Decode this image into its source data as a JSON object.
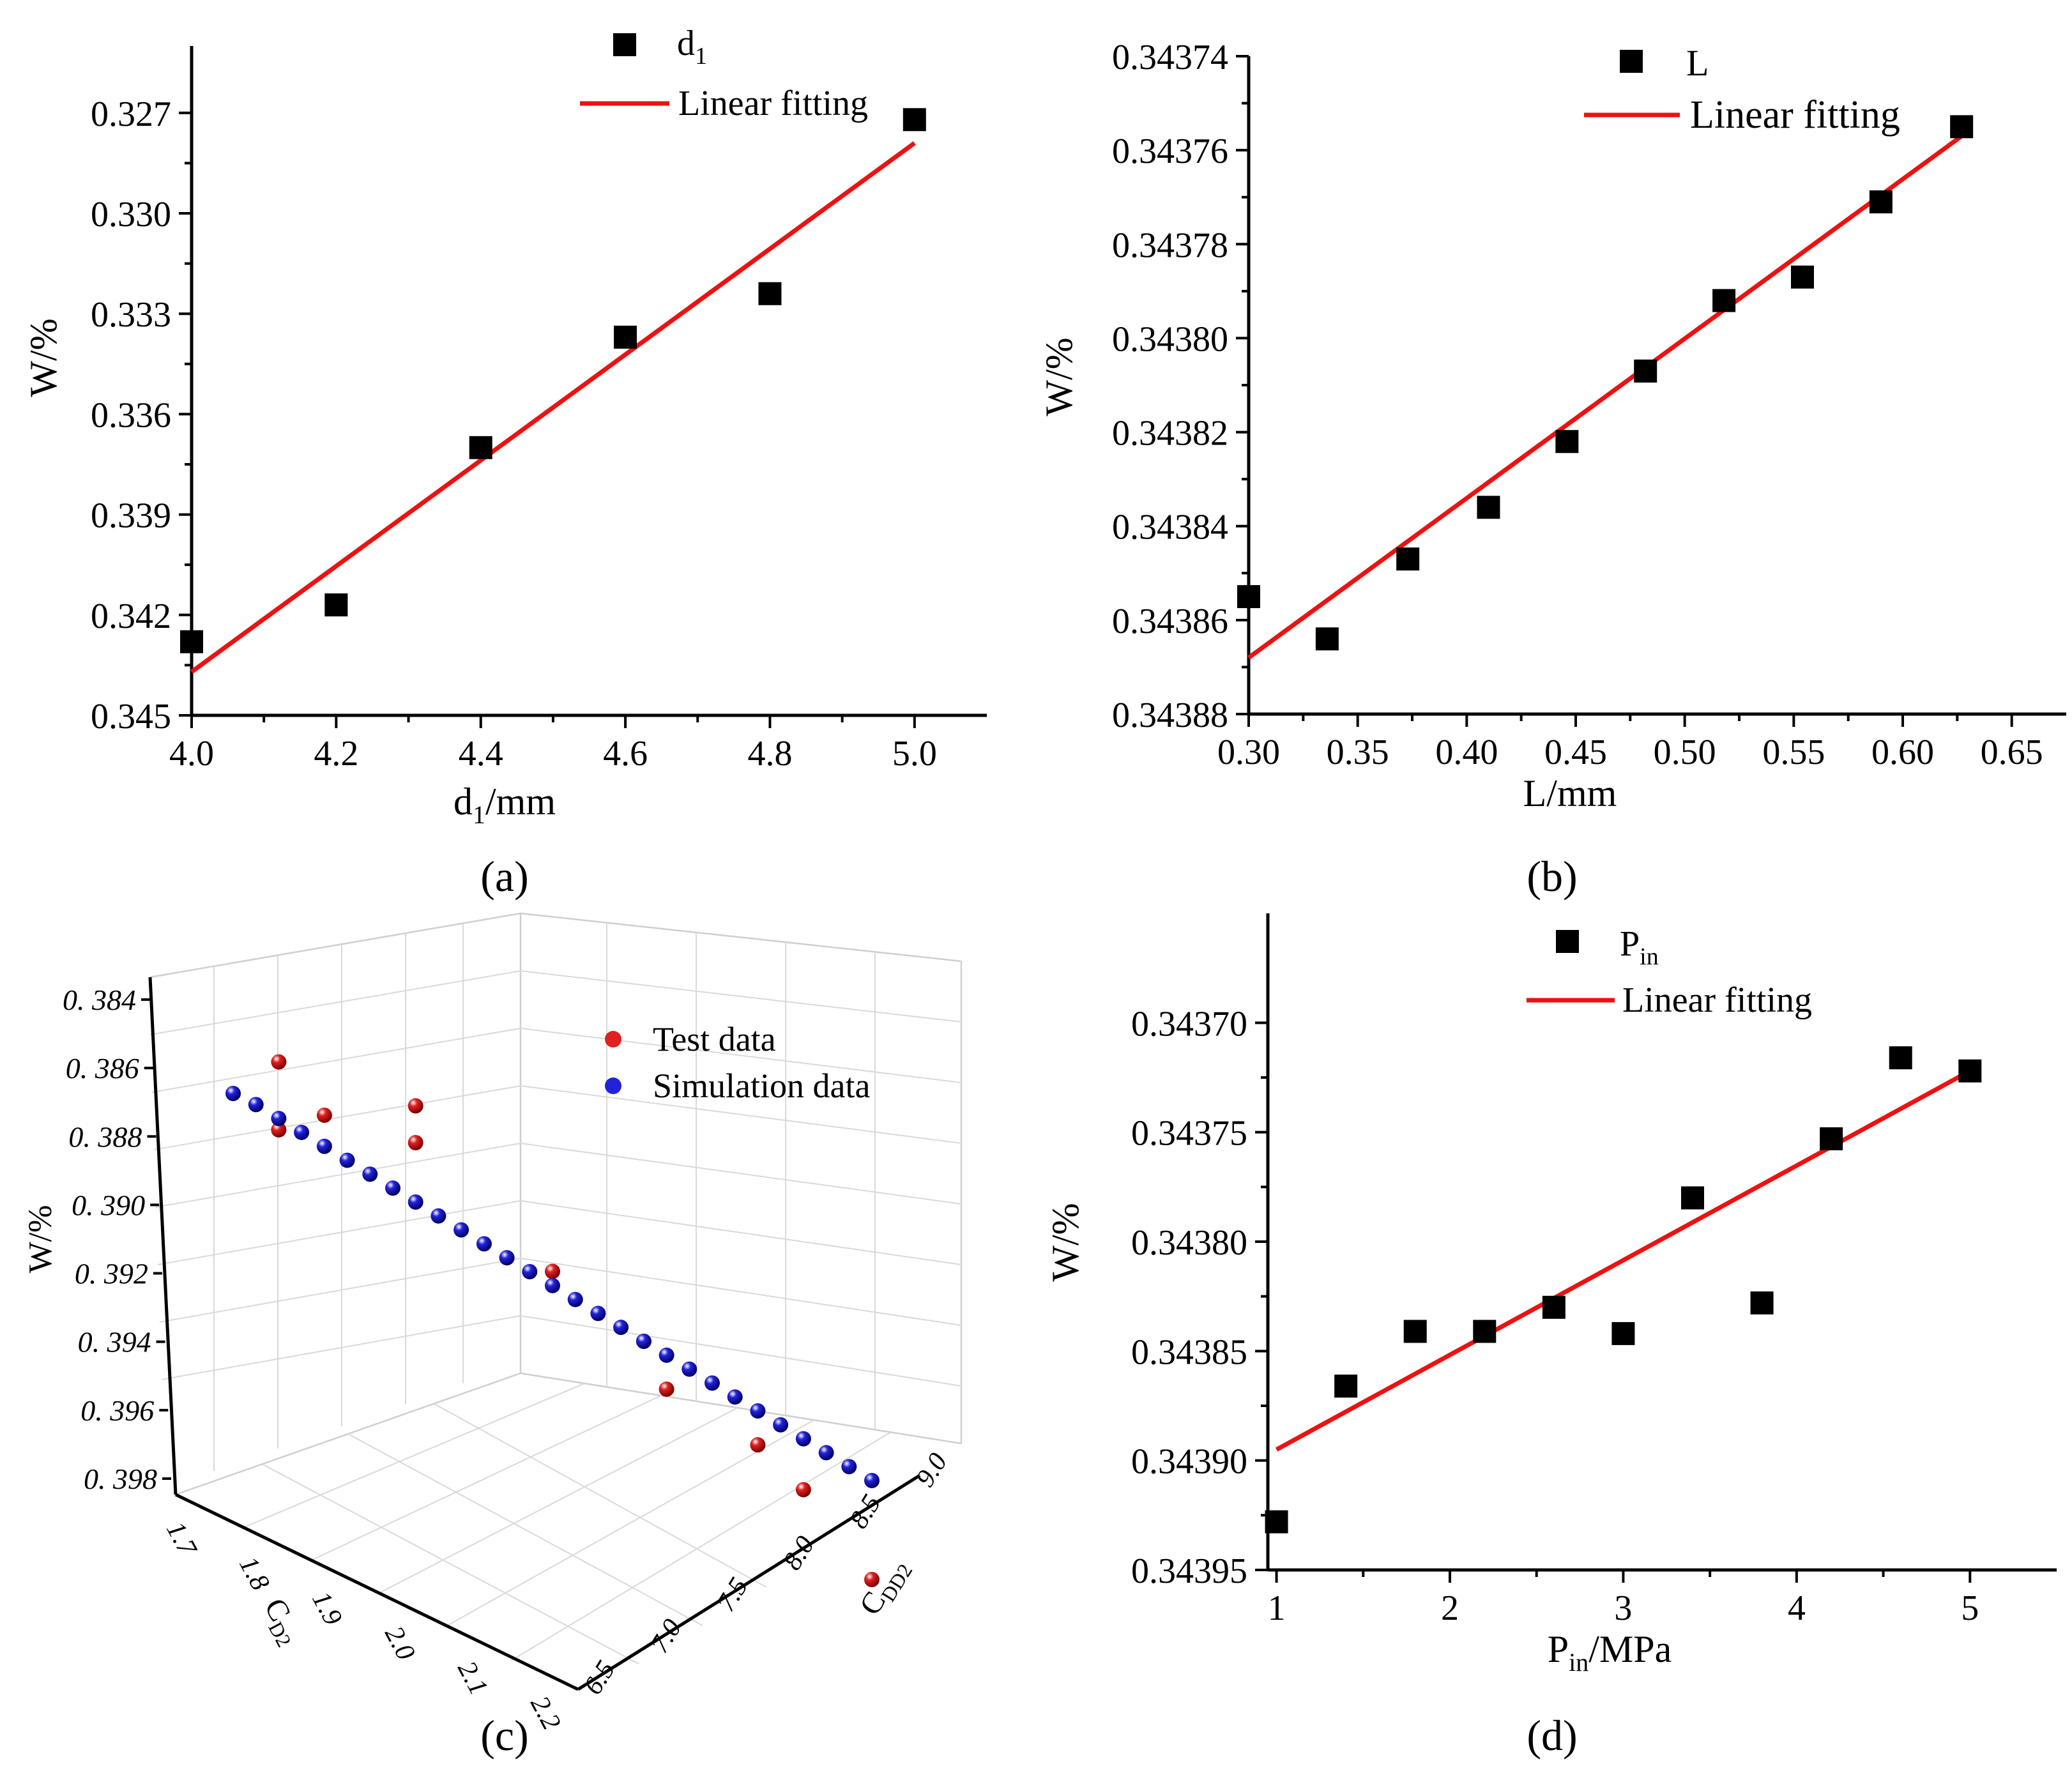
{
  "chart_data": [
    {
      "id": "a",
      "panel_label": "(a)",
      "type": "scatter",
      "xlabel": "d1/mm",
      "xlabel_main": "d",
      "xlabel_sub": "1",
      "xlabel_rest": "/mm",
      "ylabel": "W/%",
      "xlim": [
        4.0,
        5.1
      ],
      "ylim": [
        0.345,
        0.325
      ],
      "xticks": [
        4.0,
        4.2,
        4.4,
        4.6,
        4.8,
        5.0
      ],
      "xtick_labels": [
        "4.0",
        "4.2",
        "4.4",
        "4.6",
        "4.8",
        "5.0"
      ],
      "yticks": [
        0.327,
        0.33,
        0.333,
        0.336,
        0.339,
        0.342,
        0.345
      ],
      "ytick_labels": [
        "0.327",
        "0.330",
        "0.333",
        "0.336",
        "0.339",
        "0.342",
        "0.345"
      ],
      "legend": {
        "position": "top-right",
        "marker_main": "d",
        "marker_sub": "1",
        "line": "Linear fitting"
      },
      "x": [
        4.0,
        4.2,
        4.4,
        4.6,
        4.8,
        5.0
      ],
      "y": [
        0.3428,
        0.3417,
        0.337,
        0.3337,
        0.3324,
        0.3272
      ],
      "fit": {
        "x": [
          4.0,
          5.0
        ],
        "y": [
          0.3437,
          0.3279
        ]
      }
    },
    {
      "id": "b",
      "panel_label": "(b)",
      "type": "scatter",
      "xlabel": "L/mm",
      "xlabel_main": "L/mm",
      "ylabel": "W/%",
      "xlim": [
        0.3,
        0.675
      ],
      "ylim": [
        0.34388,
        0.34374
      ],
      "xticks": [
        0.3,
        0.35,
        0.4,
        0.45,
        0.5,
        0.55,
        0.6,
        0.65
      ],
      "xtick_labels": [
        "0.30",
        "0.35",
        "0.40",
        "0.45",
        "0.50",
        "0.55",
        "0.60",
        "0.65"
      ],
      "yticks": [
        0.34374,
        0.34376,
        0.34378,
        0.3438,
        0.34382,
        0.34384,
        0.34386,
        0.34388
      ],
      "ytick_labels": [
        "0.34374",
        "0.34376",
        "0.34378",
        "0.34380",
        "0.34382",
        "0.34384",
        "0.34386",
        "0.34388"
      ],
      "legend": {
        "position": "top-right",
        "marker_main": "L",
        "line": "Linear fitting"
      },
      "x": [
        0.3,
        0.336,
        0.373,
        0.41,
        0.446,
        0.482,
        0.518,
        0.554,
        0.59,
        0.627
      ],
      "y": [
        0.343855,
        0.343864,
        0.343847,
        0.343836,
        0.343822,
        0.343807,
        0.343792,
        0.343787,
        0.343771,
        0.343755
      ],
      "fit": {
        "x": [
          0.3,
          0.627
        ],
        "y": [
          0.343868,
          0.343757
        ]
      }
    },
    {
      "id": "c",
      "panel_label": "(c)",
      "type": "scatter",
      "view": "3d",
      "xlabel": "CD2",
      "xlabel_main": "C",
      "xlabel_sub": "D2",
      "ylabel": "CDD2",
      "ylabel_main": "C",
      "ylabel_sub": "DD2",
      "zlabel": "W/%",
      "zticks": [
        0.384,
        0.386,
        0.388,
        0.39,
        0.392,
        0.394,
        0.396,
        0.398
      ],
      "ztick_labels": [
        "0. 384",
        "0. 386",
        "0. 388",
        "0. 390",
        "0. 392",
        "0. 394",
        "0. 396",
        "0. 398"
      ],
      "xticks": [
        1.7,
        1.8,
        1.9,
        2.0,
        2.1,
        2.2
      ],
      "xtick_labels": [
        "1.7",
        "1.8",
        "1.9",
        "2.0",
        "2.1",
        "2.2"
      ],
      "yticks": [
        6.5,
        7.0,
        7.5,
        8.0,
        8.5,
        9.0
      ],
      "ytick_labels": [
        "6.5",
        "7.0",
        "7.5",
        "8.0",
        "8.5",
        "9.0"
      ],
      "legend": {
        "position": "top-right",
        "test": "Test data",
        "sim": "Simulation data"
      },
      "series": [
        {
          "name": "Test data",
          "color": "#e02020",
          "points": [
            [
              0.0714,
              0.3846
            ],
            [
              0.1429,
              0.3861
            ],
            [
              0.2857,
              0.3863
            ],
            [
              0.4286,
              0.3896
            ],
            [
              0.5,
              0.3897
            ],
            [
              0.6429,
              0.3914
            ],
            [
              0.6786,
              0.3929
            ],
            [
              0.8214,
              0.3941
            ],
            [
              0.8929,
              0.3953
            ],
            [
              1.0,
              0.3979
            ],
            [
              0.2857,
              0.385
            ],
            [
              0.0714,
              0.387
            ]
          ]
        },
        {
          "name": "Simulation data",
          "color": "#2222dd",
          "points": [
            [
              0.0,
              0.3861
            ],
            [
              0.0357,
              0.3863
            ],
            [
              0.0714,
              0.3866
            ],
            [
              0.1071,
              0.3869
            ],
            [
              0.1429,
              0.3872
            ],
            [
              0.1786,
              0.3875
            ],
            [
              0.2143,
              0.3878
            ],
            [
              0.25,
              0.3881
            ],
            [
              0.2857,
              0.3884
            ],
            [
              0.3214,
              0.3887
            ],
            [
              0.3571,
              0.389
            ],
            [
              0.3929,
              0.3893
            ],
            [
              0.4286,
              0.3896
            ],
            [
              0.4643,
              0.3899
            ],
            [
              0.5,
              0.3902
            ],
            [
              0.5357,
              0.3905
            ],
            [
              0.5714,
              0.3908
            ],
            [
              0.6071,
              0.3911
            ],
            [
              0.6429,
              0.3914
            ],
            [
              0.6786,
              0.3917
            ],
            [
              0.7143,
              0.392
            ],
            [
              0.75,
              0.3923
            ],
            [
              0.7857,
              0.3926
            ],
            [
              0.8214,
              0.3929
            ],
            [
              0.8571,
              0.3932
            ],
            [
              0.8929,
              0.3935
            ],
            [
              0.9286,
              0.3938
            ],
            [
              0.9643,
              0.3941
            ],
            [
              1.0,
              0.3944
            ]
          ]
        }
      ]
    },
    {
      "id": "d",
      "panel_label": "(d)",
      "type": "scatter",
      "xlabel": "Pin/MPa",
      "xlabel_main": "P",
      "xlabel_sub": "in",
      "xlabel_rest": "/MPa",
      "ylabel": "W/%",
      "xlim": [
        0.95,
        5.5
      ],
      "ylim": [
        0.34395,
        0.34365
      ],
      "xticks": [
        1,
        2,
        3,
        4,
        5
      ],
      "xtick_labels": [
        "1",
        "2",
        "3",
        "4",
        "5"
      ],
      "yticks": [
        0.3437,
        0.34375,
        0.3438,
        0.34385,
        0.3439,
        0.34395
      ],
      "ytick_labels": [
        "0.34370",
        "0.34375",
        "0.34380",
        "0.34385",
        "0.34390",
        "0.34395"
      ],
      "legend": {
        "position": "top-right",
        "marker_main": "P",
        "marker_sub": "in",
        "line": "Linear fitting"
      },
      "x": [
        1.0,
        1.4,
        1.8,
        2.2,
        2.6,
        3.0,
        3.4,
        3.8,
        4.2,
        4.6,
        5.0
      ],
      "y": [
        0.343928,
        0.343866,
        0.343841,
        0.343841,
        0.34383,
        0.343842,
        0.34378,
        0.343828,
        0.343753,
        0.343716,
        0.343722
      ],
      "fit": {
        "x": [
          1.0,
          5.0
        ],
        "y": [
          0.343895,
          0.343722
        ]
      }
    }
  ]
}
